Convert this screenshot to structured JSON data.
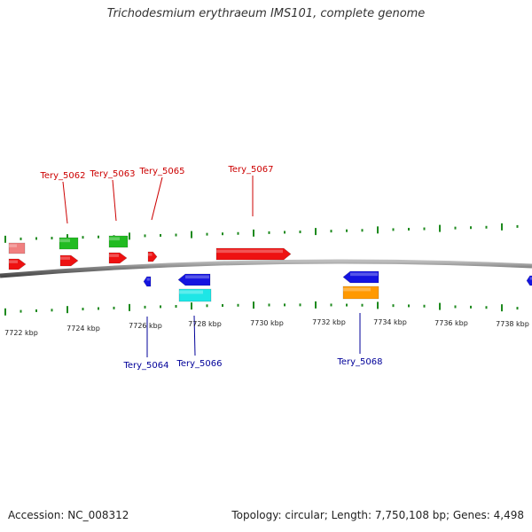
{
  "title": "Trichodesmium erythraeum IMS101, complete genome",
  "footer": {
    "accession": "Accession: NC_008312",
    "summary": "Topology: circular; Length: 7,750,108 bp; Genes: 4,498"
  },
  "colors": {
    "tick_green": "#1e8a1e",
    "backbone": "#808080",
    "label_red": "#cc0000",
    "label_blue": "#000099",
    "gene_red": "#ee1111",
    "gene_pink": "#f08080",
    "gene_green": "#22bb22",
    "gene_blue": "#1414e0",
    "gene_cyan": "#1ee6e6",
    "gene_orange": "#ff9900"
  },
  "axis": {
    "unit": "kbp",
    "labels": [
      "7722 kbp",
      "7724 kbp",
      "7726 kbp",
      "7728 kbp",
      "7730 kbp",
      "7732 kbp",
      "7734 kbp",
      "7736 kbp",
      "7738 kbp"
    ]
  },
  "gene_labels": [
    {
      "text": "Tery_5062",
      "strand": "forward"
    },
    {
      "text": "Tery_5063",
      "strand": "forward"
    },
    {
      "text": "Tery_5065",
      "strand": "forward"
    },
    {
      "text": "Tery_5067",
      "strand": "forward"
    },
    {
      "text": "Tery_5064",
      "strand": "reverse"
    },
    {
      "text": "Tery_5066",
      "strand": "reverse"
    },
    {
      "text": "Tery_5068",
      "strand": "reverse"
    }
  ]
}
